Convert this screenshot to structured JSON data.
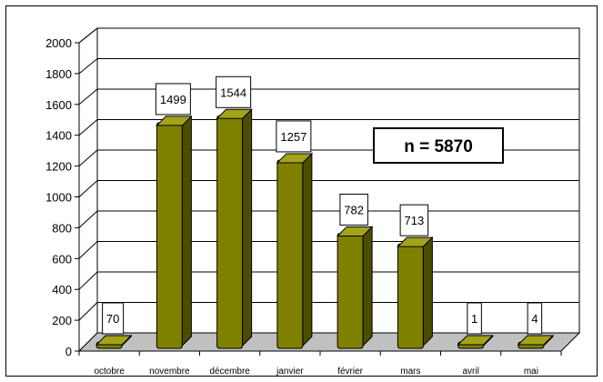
{
  "chart_data": {
    "type": "bar",
    "categories": [
      "octobre",
      "novembre",
      "décembre",
      "janvier",
      "février",
      "mars",
      "avril",
      "mai"
    ],
    "values": [
      70,
      1499,
      1544,
      1257,
      782,
      713,
      1,
      4
    ],
    "data_labels": [
      "70",
      "1499",
      "1544",
      "1257",
      "782",
      "713",
      "1",
      "4"
    ],
    "title": "",
    "xlabel": "",
    "ylabel": "",
    "ylim": [
      0,
      2000
    ],
    "yticks": [
      "0",
      "200",
      "400",
      "600",
      "800",
      "1000",
      "1200",
      "1400",
      "1600",
      "1800",
      "2000"
    ],
    "grid": true,
    "legend": "none",
    "annotation": "n = 5870",
    "colors": {
      "bar_front": "#808000",
      "bar_light": "#a3a31a",
      "bar_dark": "#4d4d00",
      "floor": "#c0c0c0",
      "grid": "#000000"
    }
  }
}
